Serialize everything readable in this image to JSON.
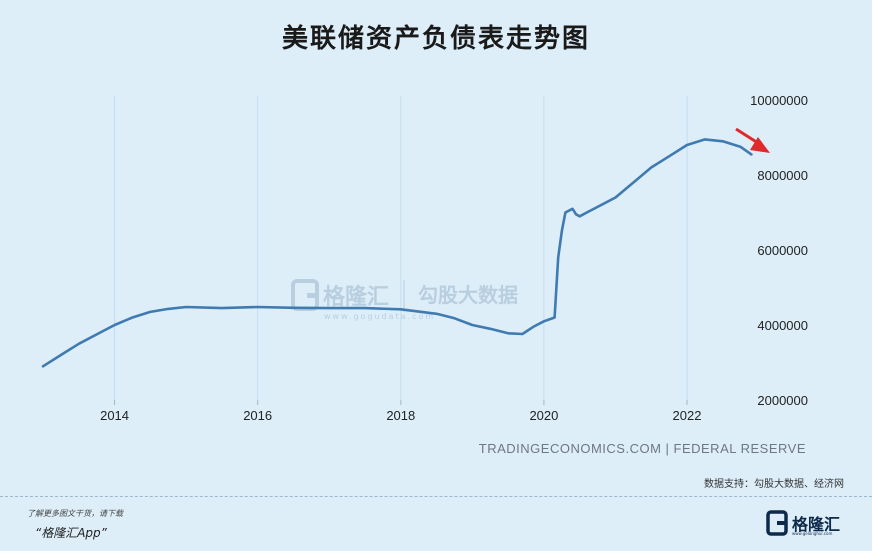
{
  "title": "美联储资产负债表走势图",
  "source": "TRADINGECONOMICS.COM | FEDERAL RESERVE",
  "support": "数据支持：勾股大数据、经济网",
  "watermark": {
    "brand": "格隆汇",
    "product": "勾股大数据",
    "url": "www.gogudata.com"
  },
  "footer": {
    "note": "了解更多图文干货，请下载",
    "app": "“格隆汇App”",
    "logo_text": "格隆汇",
    "logo_url": "www.gelonghui.com"
  },
  "colors": {
    "background": "#ddeef9",
    "line": "#3f7bb1",
    "arrow": "#e0292a"
  },
  "chart_data": {
    "type": "line",
    "title": "美联储资产负债表走势图",
    "xlabel": "",
    "ylabel": "",
    "xlim": [
      2013.0,
      2022.95
    ],
    "ylim": [
      2000000,
      10000000
    ],
    "x_ticks": [
      2014,
      2016,
      2018,
      2020,
      2022
    ],
    "x_tick_labels": [
      "2014",
      "2016",
      "2018",
      "2020",
      "2022"
    ],
    "y_ticks": [
      2000000,
      4000000,
      6000000,
      8000000,
      10000000
    ],
    "y_tick_labels": [
      "2000000",
      "4000000",
      "6000000",
      "8000000",
      "10000000"
    ],
    "y_axis_side": "right",
    "grid": "vertical",
    "series": [
      {
        "x": [
          2013.0,
          2013.25,
          2013.5,
          2013.75,
          2014.0,
          2014.25,
          2014.5,
          2014.75,
          2015.0,
          2015.5,
          2016.0,
          2016.5,
          2017.0,
          2017.5,
          2018.0,
          2018.5,
          2018.75,
          2019.0,
          2019.25,
          2019.5,
          2019.7,
          2019.85,
          2020.0,
          2020.15,
          2020.2,
          2020.25,
          2020.3,
          2020.4,
          2020.45,
          2020.5,
          2020.6,
          2020.75,
          2021.0,
          2021.25,
          2021.5,
          2021.75,
          2022.0,
          2022.25,
          2022.5,
          2022.75,
          2022.9
        ],
        "y": [
          2900000,
          3200000,
          3500000,
          3750000,
          4000000,
          4200000,
          4350000,
          4430000,
          4480000,
          4450000,
          4480000,
          4460000,
          4450000,
          4450000,
          4420000,
          4300000,
          4180000,
          4000000,
          3900000,
          3780000,
          3760000,
          3950000,
          4100000,
          4200000,
          5800000,
          6500000,
          7000000,
          7100000,
          6950000,
          6900000,
          7000000,
          7150000,
          7400000,
          7800000,
          8200000,
          8500000,
          8800000,
          8950000,
          8900000,
          8750000,
          8550000
        ]
      }
    ],
    "annotation": {
      "type": "arrow",
      "meaning": "downward trend"
    }
  }
}
